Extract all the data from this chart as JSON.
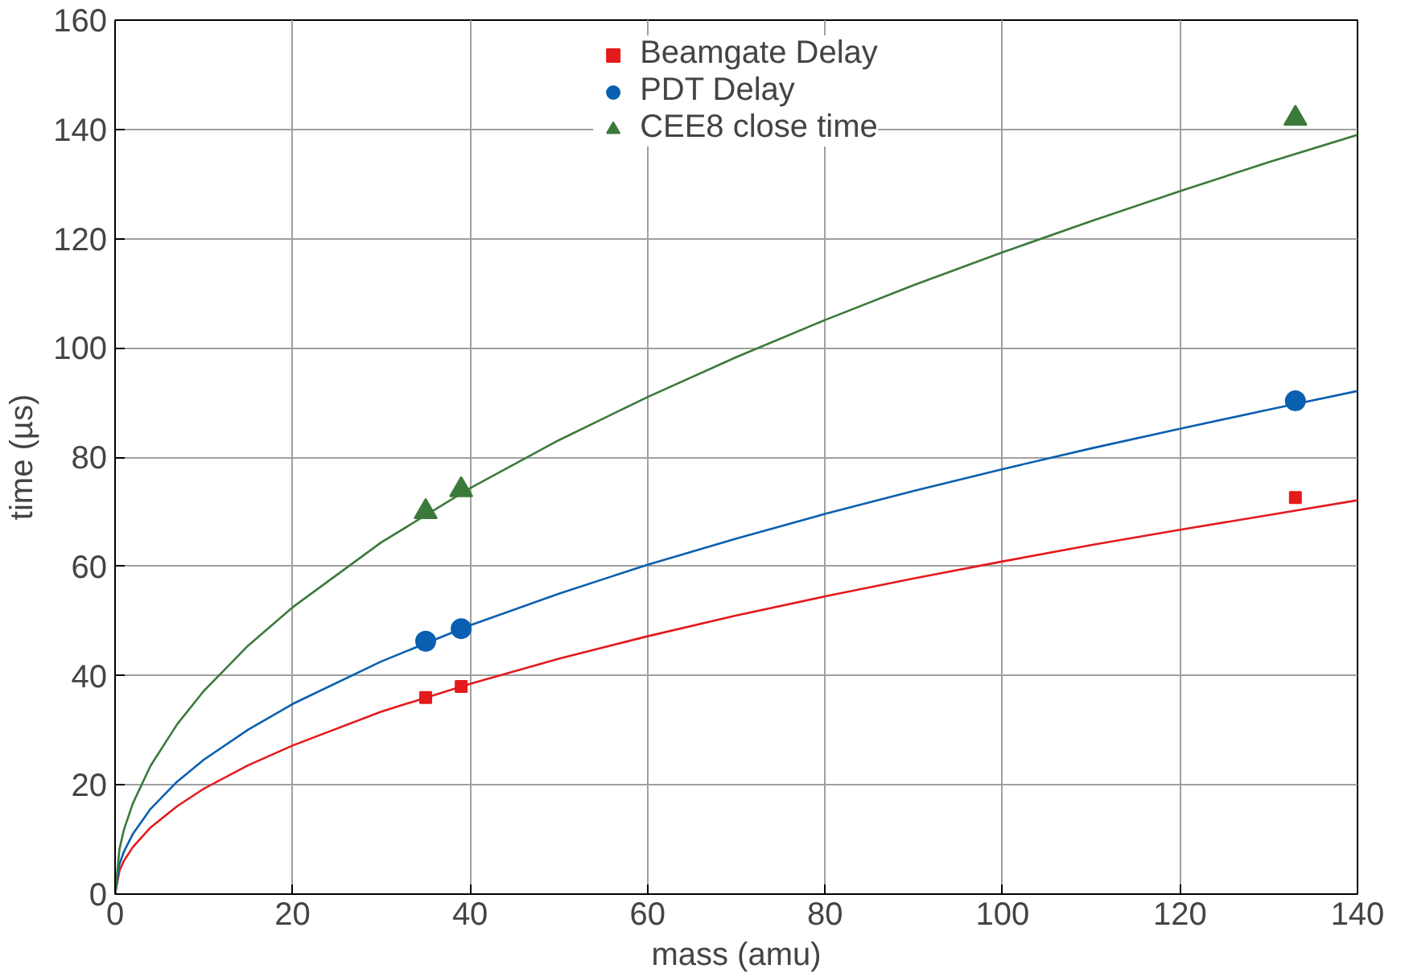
{
  "chart_data": {
    "type": "scatter",
    "xlabel": "mass (amu)",
    "ylabel": "time (µs)",
    "xlim": [
      0,
      140
    ],
    "xticks": [
      0,
      20,
      40,
      60,
      80,
      100,
      120,
      140
    ],
    "ylim": [
      0,
      160
    ],
    "yticks": [
      0,
      20,
      40,
      60,
      80,
      100,
      120,
      140,
      160
    ],
    "grid": true,
    "legend": "top",
    "series": [
      {
        "name": "Beamgate Delay",
        "color": "#e41a1c",
        "marker": "square",
        "x": [
          35,
          39,
          133
        ],
        "values": [
          36.0,
          38.0,
          72.6
        ]
      },
      {
        "name": "PDT Delay",
        "color": "#0a5fb0",
        "marker": "circle",
        "x": [
          35,
          39,
          133
        ],
        "values": [
          46.3,
          48.6,
          90.3
        ]
      },
      {
        "name": "CEE8 close time",
        "color": "#3b7a3b",
        "marker": "triangle",
        "x": [
          35,
          39,
          133
        ],
        "values": [
          70.0,
          74.0,
          142.0
        ]
      },
      {
        "type": "line",
        "color": "#e41a1c",
        "x": [
          0,
          0.5,
          1,
          2,
          4,
          7,
          10,
          15,
          20,
          30,
          40,
          50,
          60,
          70,
          80,
          90,
          100,
          110,
          120,
          130,
          140
        ],
        "values": [
          0,
          4.3,
          6.1,
          8.6,
          12.2,
          16.1,
          19.3,
          23.6,
          27.2,
          33.4,
          38.5,
          43.1,
          47.2,
          51.0,
          54.5,
          57.8,
          60.9,
          63.9,
          66.7,
          69.4,
          72.1
        ]
      },
      {
        "type": "line",
        "color": "#0a5fb0",
        "x": [
          0,
          0.5,
          1,
          2,
          4,
          7,
          10,
          15,
          20,
          30,
          40,
          50,
          60,
          70,
          80,
          90,
          100,
          110,
          120,
          130,
          140
        ],
        "values": [
          0,
          5.5,
          7.8,
          11.0,
          15.6,
          20.6,
          24.6,
          30.1,
          34.8,
          42.6,
          49.2,
          55.0,
          60.3,
          65.1,
          69.6,
          73.8,
          77.8,
          81.6,
          85.2,
          88.7,
          92.1
        ]
      },
      {
        "type": "line",
        "color": "#3b7a3b",
        "x": [
          0,
          0.5,
          1,
          2,
          4,
          7,
          10,
          15,
          20,
          30,
          40,
          50,
          60,
          70,
          80,
          90,
          100,
          110,
          120,
          130,
          140
        ],
        "values": [
          0,
          8.3,
          11.8,
          16.6,
          23.5,
          31.1,
          37.2,
          45.5,
          52.5,
          64.4,
          74.3,
          83.1,
          91.0,
          98.3,
          105.1,
          111.5,
          117.5,
          123.2,
          128.7,
          134.0,
          139.0
        ]
      }
    ]
  }
}
